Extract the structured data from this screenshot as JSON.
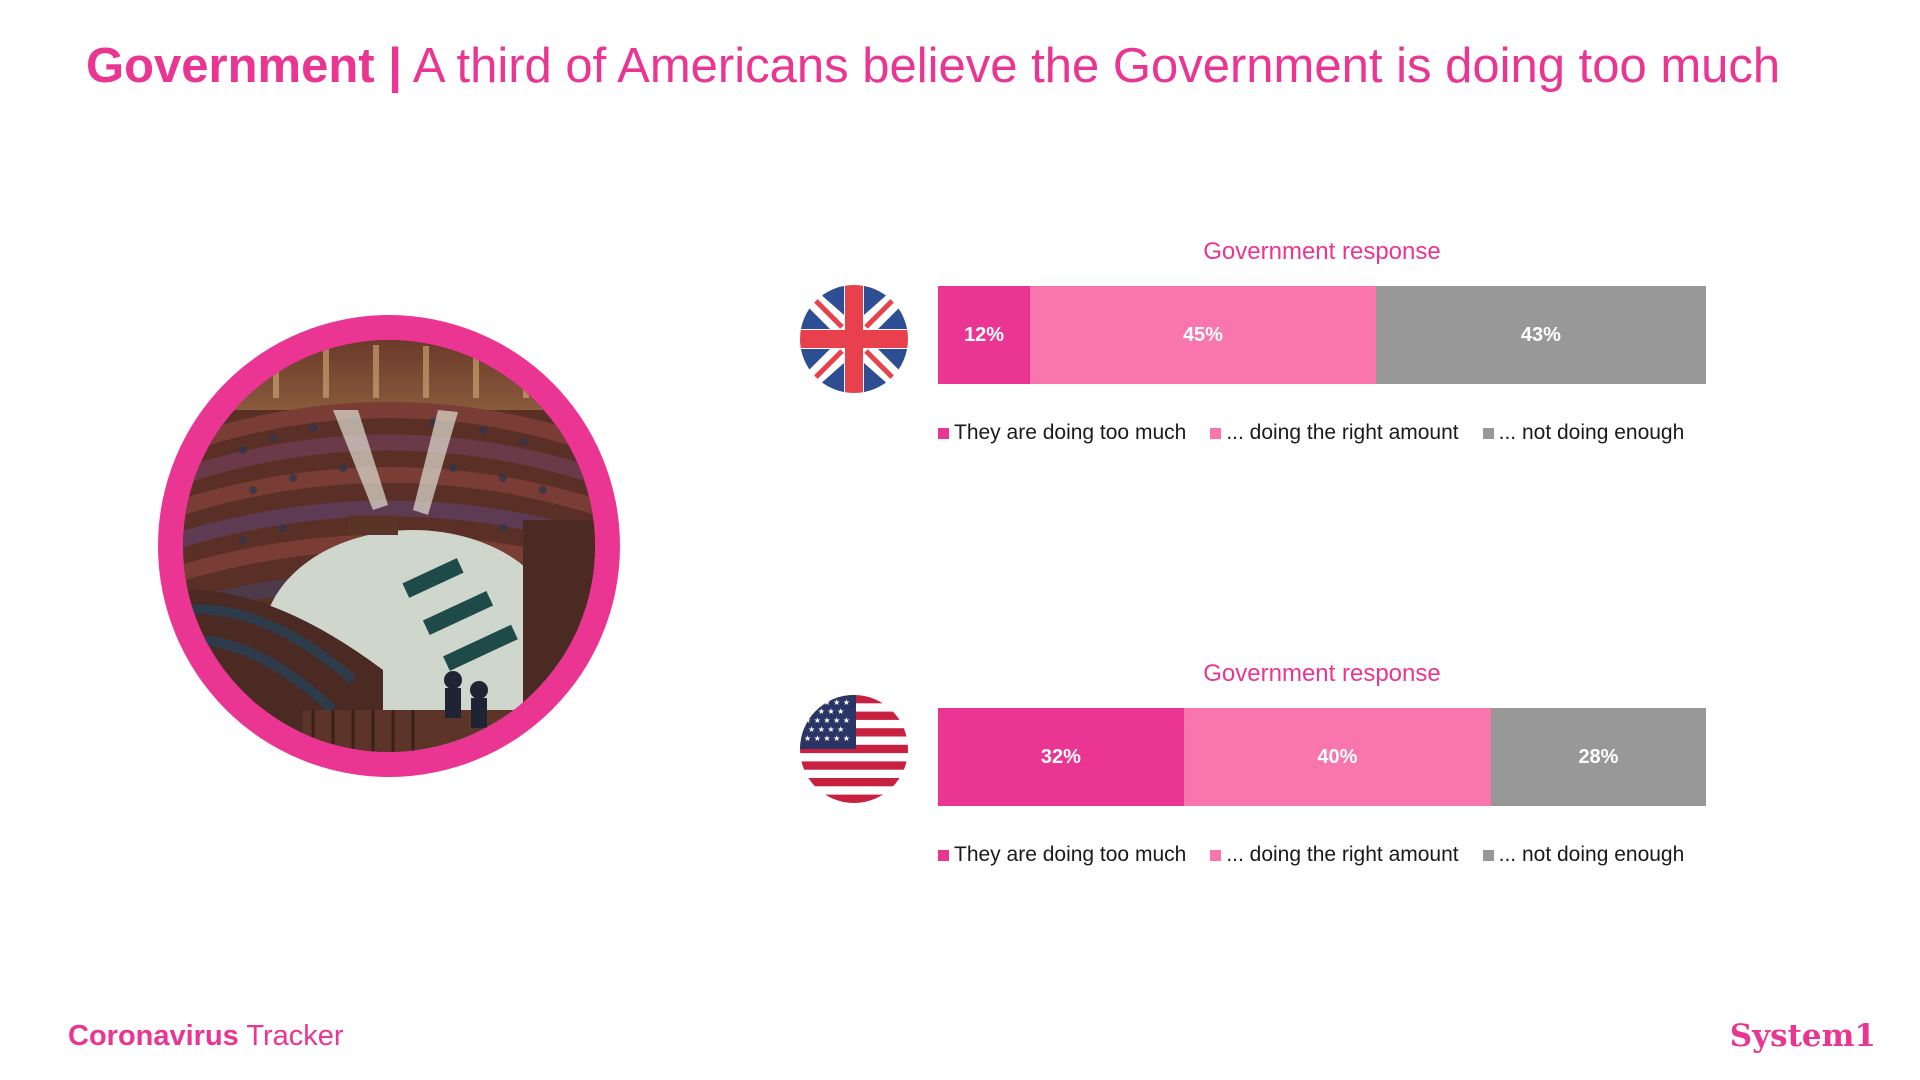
{
  "title": {
    "bold": "Government |",
    "rest": " A third of Americans believe the Government is doing too much"
  },
  "colors": {
    "accent": "#ea3592",
    "too_much": "#ea3592",
    "right_amount": "#f975ad",
    "not_enough": "#989898"
  },
  "chart_data": [
    {
      "type": "bar",
      "orientation": "horizontal-stacked",
      "flag": "uk-flag-icon",
      "title": "Government response",
      "series": [
        {
          "name": "They are doing too much",
          "values": [
            12
          ]
        },
        {
          "name": "... doing the right amount",
          "values": [
            45
          ]
        },
        {
          "name": "... not doing enough",
          "values": [
            43
          ]
        }
      ],
      "data_labels": [
        "12%",
        "45%",
        "43%"
      ],
      "legend_position": "bottom"
    },
    {
      "type": "bar",
      "orientation": "horizontal-stacked",
      "flag": "us-flag-icon",
      "title": "Government response",
      "series": [
        {
          "name": "They are doing too much",
          "values": [
            32
          ]
        },
        {
          "name": "... doing the right amount",
          "values": [
            40
          ]
        },
        {
          "name": "... not doing enough",
          "values": [
            28
          ]
        }
      ],
      "data_labels": [
        "32%",
        "40%",
        "28%"
      ],
      "legend_position": "bottom"
    }
  ],
  "footer": {
    "left_bold": "Coronavirus",
    "left_rest": " Tracker",
    "brand": "System1"
  }
}
